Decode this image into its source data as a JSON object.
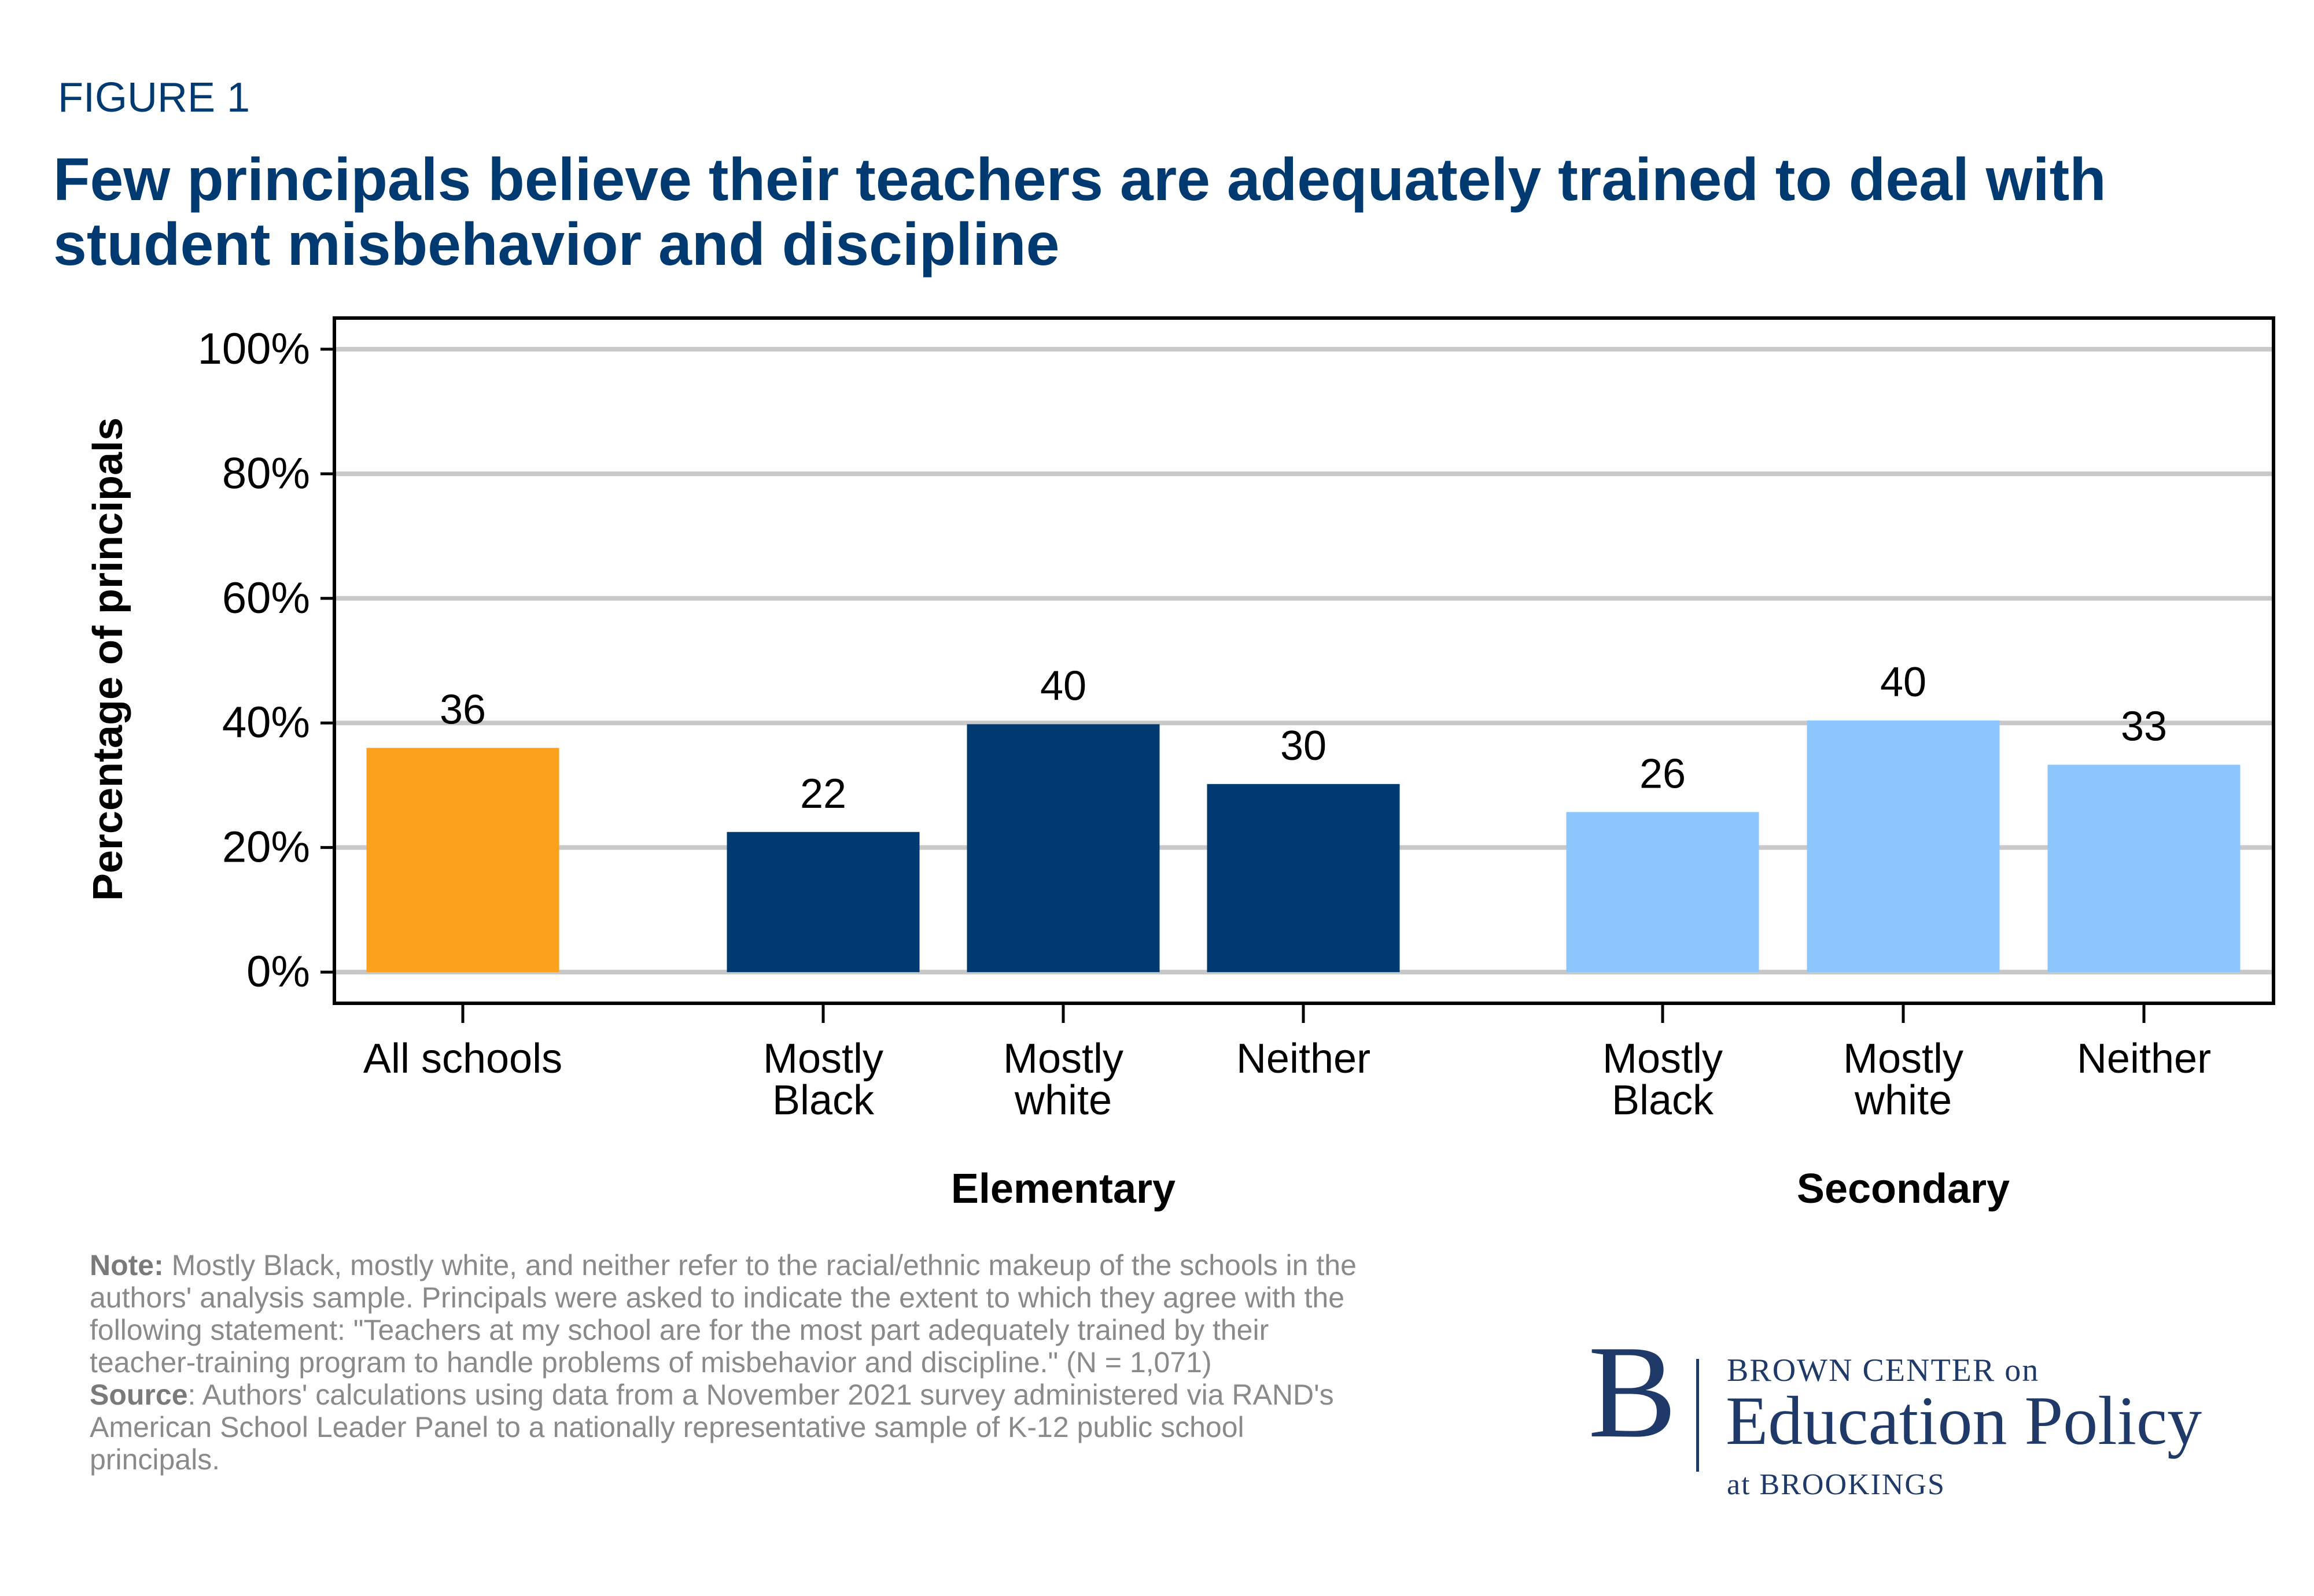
{
  "figure": {
    "label": "FIGURE 1",
    "title": "Few principals believe their teachers are adequately trained to deal with student misbehavior and discipline"
  },
  "chart_data": {
    "type": "bar",
    "title": "Few principals believe their teachers are adequately trained to deal with student misbehavior and discipline",
    "ylabel": "Percentage of principals",
    "xlabel": "",
    "ylim": [
      -5,
      105
    ],
    "yticks": [
      0,
      20,
      40,
      60,
      80,
      100
    ],
    "ytick_labels": [
      "0%",
      "20%",
      "40%",
      "60%",
      "80%",
      "100%"
    ],
    "grid": true,
    "groups": [
      {
        "name": "",
        "label": ""
      },
      {
        "name": "Elementary",
        "label": "Elementary"
      },
      {
        "name": "Secondary",
        "label": "Secondary"
      }
    ],
    "bars": [
      {
        "group": 0,
        "label": "All schools",
        "value": 36,
        "data_label": "36",
        "color": "#fba11e"
      },
      {
        "group": 1,
        "label": "Mostly\nBlack",
        "value": 22.5,
        "data_label": "22",
        "color": "#003a70"
      },
      {
        "group": 1,
        "label": "Mostly\nwhite",
        "value": 39.8,
        "data_label": "40",
        "color": "#003a70"
      },
      {
        "group": 1,
        "label": "Neither",
        "value": 30.2,
        "data_label": "30",
        "color": "#003a70"
      },
      {
        "group": 2,
        "label": "Mostly\nBlack",
        "value": 25.7,
        "data_label": "26",
        "color": "#8dc6fd"
      },
      {
        "group": 2,
        "label": "Mostly\nwhite",
        "value": 40.4,
        "data_label": "40",
        "color": "#8dc6fd"
      },
      {
        "group": 2,
        "label": "Neither",
        "value": 33.3,
        "data_label": "33",
        "color": "#8dc6fd"
      }
    ]
  },
  "footnote": {
    "note_label": "Note:",
    "note_text": " Mostly Black, mostly white, and neither refer to the racial/ethnic makeup of the schools in the authors' analysis sample. Principals were asked to indicate the extent to which they agree with the following statement: \"Teachers at my school are for the most part adequately trained by their teacher-training program to handle problems of misbehavior and discipline.\" (N = 1,071)",
    "source_label": "Source",
    "source_text": ": Authors' calculations using data from a November 2021 survey administered via RAND's American School Leader Panel to a nationally representative sample of K-12 public school principals."
  },
  "logo": {
    "letter": "B",
    "line1": "BROWN CENTER on",
    "line2": "Education Policy",
    "line3": "at BROOKINGS"
  },
  "colors": {
    "title": "#003a70",
    "all_schools": "#fba11e",
    "elementary": "#003a70",
    "secondary": "#8dc6fd",
    "grid": "#c8c8c8",
    "note": "#8a8a8a"
  }
}
